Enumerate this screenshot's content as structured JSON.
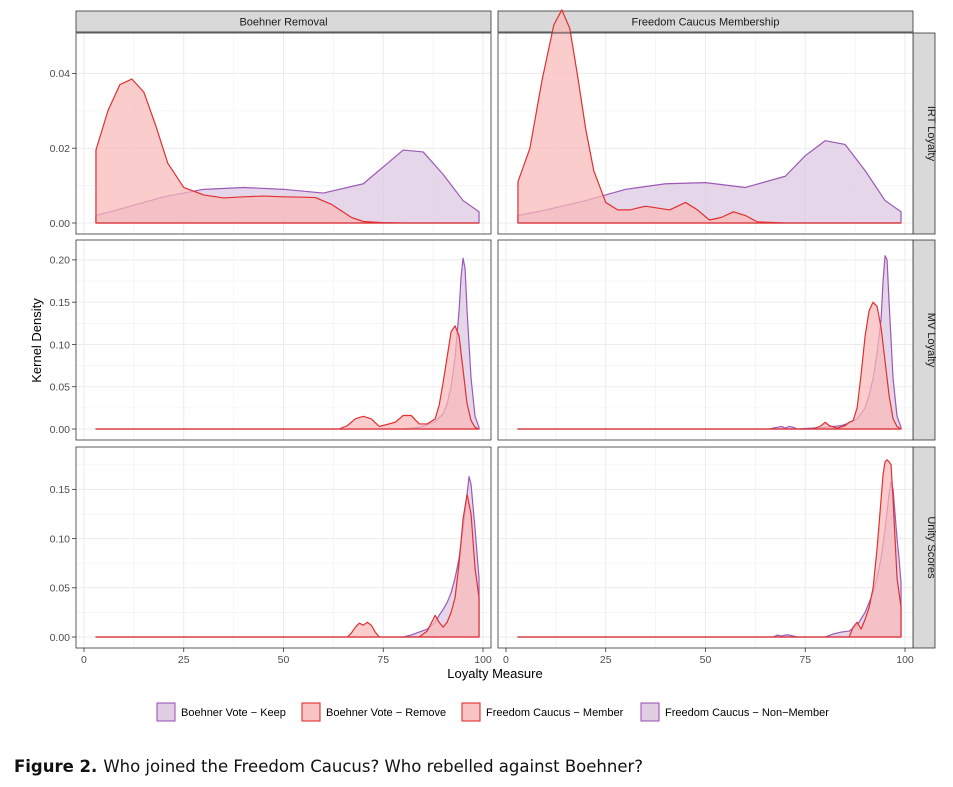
{
  "figure": {
    "label": "Figure 2.",
    "caption": "Who joined the Freedom Caucus? Who rebelled against Boehner?"
  },
  "chart_data": {
    "type": "area",
    "xlabel": "Loyalty Measure",
    "ylabel": "Kernel Density",
    "xlim": [
      -2,
      102
    ],
    "x_ticks": [
      0,
      25,
      50,
      75,
      100
    ],
    "grid": true,
    "legend_position": "bottom",
    "column_facets": [
      "Boehner Removal",
      "Freedom Caucus Membership"
    ],
    "row_facets": [
      "IRT Loyalty",
      "MV Loyalty",
      "Unity Scores"
    ],
    "legend": [
      {
        "label": "Boehner Vote − Keep",
        "fill": "#dcc6e0",
        "stroke": "#9b59b6"
      },
      {
        "label": "Boehner Vote − Remove",
        "fill": "#f9b8b8",
        "stroke": "#e03030"
      },
      {
        "label": "Freedom Caucus − Member",
        "fill": "#f9b8b8",
        "stroke": "#e03030"
      },
      {
        "label": "Freedom Caucus − Non−Member",
        "fill": "#dcc6e0",
        "stroke": "#9b59b6"
      }
    ],
    "panels": [
      {
        "row": "IRT Loyalty",
        "col": "Boehner Removal",
        "ylim": [
          0,
          0.05
        ],
        "y_ticks": [
          0,
          0.02,
          0.04
        ],
        "series": [
          {
            "name": "Boehner Vote − Keep",
            "x": [
              3,
              10,
              20,
              30,
              40,
              50,
              60,
              70,
              75,
              80,
              85,
              90,
              95,
              99
            ],
            "y": [
              0.002,
              0.004,
              0.007,
              0.009,
              0.0095,
              0.009,
              0.008,
              0.0105,
              0.015,
              0.0195,
              0.019,
              0.013,
              0.006,
              0.003
            ]
          },
          {
            "name": "Boehner Vote − Remove",
            "x": [
              3,
              6,
              9,
              12,
              15,
              18,
              21,
              25,
              30,
              35,
              40,
              45,
              50,
              55,
              58,
              62,
              67,
              70,
              75,
              80,
              90,
              99
            ],
            "y": [
              0.0195,
              0.03,
              0.037,
              0.0385,
              0.035,
              0.026,
              0.016,
              0.0095,
              0.0075,
              0.0067,
              0.007,
              0.0072,
              0.007,
              0.0069,
              0.0068,
              0.005,
              0.0015,
              0.0004,
              0.0001,
              0,
              0,
              0
            ]
          }
        ]
      },
      {
        "row": "IRT Loyalty",
        "col": "Freedom Caucus Membership",
        "ylim": [
          0,
          0.05
        ],
        "y_ticks": [
          0,
          0.02,
          0.04
        ],
        "series": [
          {
            "name": "Freedom Caucus − Non−Member",
            "x": [
              3,
              10,
              20,
              30,
              40,
              50,
              60,
              70,
              75,
              80,
              85,
              90,
              95,
              99
            ],
            "y": [
              0.002,
              0.0035,
              0.006,
              0.009,
              0.0105,
              0.0108,
              0.0095,
              0.0125,
              0.018,
              0.022,
              0.021,
              0.014,
              0.006,
              0.003
            ]
          },
          {
            "name": "Freedom Caucus − Member",
            "x": [
              3,
              6,
              9,
              12,
              14,
              16,
              18,
              20,
              22,
              25,
              28,
              31,
              35,
              38,
              41,
              45,
              48,
              51,
              54,
              57,
              60,
              63,
              70,
              99
            ],
            "y": [
              0.011,
              0.02,
              0.038,
              0.053,
              0.057,
              0.052,
              0.039,
              0.025,
              0.014,
              0.0055,
              0.0035,
              0.0035,
              0.0045,
              0.004,
              0.0035,
              0.0055,
              0.0035,
              0.0008,
              0.0015,
              0.003,
              0.002,
              0.0003,
              0,
              0
            ]
          }
        ]
      },
      {
        "row": "MV Loyalty",
        "col": "Boehner Removal",
        "ylim": [
          0,
          0.22
        ],
        "y_ticks": [
          0,
          0.05,
          0.1,
          0.15,
          0.2
        ],
        "series": [
          {
            "name": "Boehner Vote − Keep",
            "x": [
              3,
              80,
              84,
              86,
              88,
              90,
              91,
              92,
              93,
              94,
              94.5,
              95,
              95.5,
              96,
              97,
              98,
              99
            ],
            "y": [
              0,
              0,
              0.002,
              0.005,
              0.009,
              0.018,
              0.03,
              0.05,
              0.085,
              0.14,
              0.18,
              0.202,
              0.19,
              0.14,
              0.06,
              0.015,
              0.002
            ]
          },
          {
            "name": "Boehner Vote − Remove",
            "x": [
              3,
              64,
              66,
              68,
              70,
              72,
              74,
              78,
              80,
              82,
              84,
              86,
              88,
              89,
              90,
              91,
              92,
              93,
              94,
              95,
              96,
              97,
              98,
              99
            ],
            "y": [
              0,
              0,
              0.004,
              0.012,
              0.015,
              0.012,
              0.003,
              0.008,
              0.016,
              0.016,
              0.006,
              0.006,
              0.012,
              0.028,
              0.055,
              0.085,
              0.115,
              0.122,
              0.11,
              0.07,
              0.03,
              0.01,
              0.002,
              0
            ]
          }
        ]
      },
      {
        "row": "MV Loyalty",
        "col": "Freedom Caucus Membership",
        "ylim": [
          0,
          0.22
        ],
        "y_ticks": [
          0,
          0.05,
          0.1,
          0.15,
          0.2
        ],
        "series": [
          {
            "name": "Freedom Caucus − Non−Member",
            "x": [
              3,
              66,
              68,
              69,
              70,
              71,
              72,
              73,
              80,
              84,
              86,
              88,
              90,
              91,
              92,
              93,
              94,
              94.5,
              95,
              95.5,
              96,
              97,
              98,
              99
            ],
            "y": [
              0,
              0,
              0.002,
              0.003,
              0.001,
              0.003,
              0.002,
              0,
              0.002,
              0.004,
              0.007,
              0.012,
              0.025,
              0.04,
              0.06,
              0.09,
              0.13,
              0.175,
              0.205,
              0.2,
              0.15,
              0.06,
              0.015,
              0.002
            ]
          },
          {
            "name": "Freedom Caucus − Member",
            "x": [
              3,
              77,
              79,
              80,
              81,
              83,
              85,
              86,
              87,
              88,
              89,
              90,
              91,
              92,
              93,
              94,
              95,
              96,
              97,
              98,
              99
            ],
            "y": [
              0,
              0,
              0.004,
              0.008,
              0.004,
              0.001,
              0.004,
              0.008,
              0.01,
              0.025,
              0.065,
              0.11,
              0.14,
              0.15,
              0.145,
              0.12,
              0.08,
              0.04,
              0.012,
              0.003,
              0
            ]
          }
        ]
      },
      {
        "row": "Unity Scores",
        "col": "Boehner Removal",
        "ylim": [
          0,
          0.19
        ],
        "y_ticks": [
          0,
          0.05,
          0.1,
          0.15
        ],
        "series": [
          {
            "name": "Boehner Vote − Keep",
            "x": [
              3,
              80,
              82,
              84,
              86,
              88,
              89,
              90,
              91,
              92,
              93,
              94,
              95,
              96,
              96.5,
              97,
              98,
              98.5,
              99
            ],
            "y": [
              0,
              0,
              0.002,
              0.005,
              0.008,
              0.015,
              0.022,
              0.028,
              0.035,
              0.045,
              0.06,
              0.08,
              0.11,
              0.145,
              0.163,
              0.155,
              0.11,
              0.085,
              0.06
            ]
          },
          {
            "name": "Boehner Vote − Remove",
            "x": [
              3,
              66,
              67,
              68,
              69,
              70,
              71,
              72,
              73,
              74,
              84,
              86,
              87,
              88,
              89,
              90,
              91,
              92,
              93,
              94,
              95,
              96,
              97,
              98,
              99
            ],
            "y": [
              0,
              0,
              0.004,
              0.01,
              0.014,
              0.012,
              0.015,
              0.012,
              0.005,
              0,
              0,
              0.006,
              0.014,
              0.022,
              0.015,
              0.01,
              0.015,
              0.025,
              0.04,
              0.075,
              0.12,
              0.145,
              0.125,
              0.07,
              0.04
            ]
          }
        ]
      },
      {
        "row": "Unity Scores",
        "col": "Freedom Caucus Membership",
        "ylim": [
          0,
          0.19
        ],
        "y_ticks": [
          0,
          0.05,
          0.1,
          0.15
        ],
        "series": [
          {
            "name": "Freedom Caucus − Non−Member",
            "x": [
              3,
              67,
              68,
              69,
              70,
              71,
              72,
              73,
              80,
              82,
              84,
              86,
              88,
              90,
              91,
              92,
              93,
              94,
              95,
              96,
              96.5,
              97,
              98,
              98.5,
              99
            ],
            "y": [
              0,
              0,
              0.002,
              0.001,
              0.002,
              0.002,
              0.001,
              0,
              0,
              0.003,
              0.005,
              0.006,
              0.012,
              0.025,
              0.035,
              0.045,
              0.06,
              0.08,
              0.11,
              0.145,
              0.158,
              0.15,
              0.1,
              0.08,
              0.055
            ]
          },
          {
            "name": "Freedom Caucus − Member",
            "x": [
              3,
              86,
              87,
              88,
              89,
              90,
              91,
              92,
              93,
              94,
              94.5,
              95,
              95.5,
              96,
              96.5,
              97,
              97.5,
              98,
              98.5,
              99
            ],
            "y": [
              0,
              0,
              0.01,
              0.015,
              0.008,
              0.018,
              0.03,
              0.05,
              0.09,
              0.14,
              0.165,
              0.178,
              0.18,
              0.178,
              0.175,
              0.14,
              0.1,
              0.06,
              0.045,
              0.03
            ]
          }
        ]
      }
    ]
  }
}
